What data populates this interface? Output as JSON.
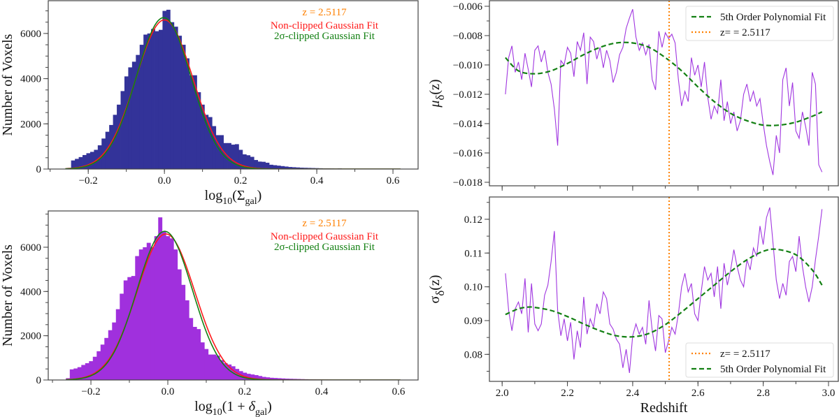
{
  "colors": {
    "hist_sigma": "#333399",
    "hist_delta": "#a030dd",
    "series_line": "#a036e0",
    "nonclipped_fit": "#ff1a1a",
    "clipped_fit": "#138013",
    "poly_fit": "#138013",
    "redshift_marker": "#ff8000"
  },
  "chart_data": [
    {
      "type": "bar",
      "panel": "top-left",
      "xlabel_parts": [
        [
          "log",
          ""
        ],
        [
          "10",
          "sub"
        ],
        [
          "(Σ",
          ""
        ],
        [
          "gal",
          "sub"
        ],
        [
          ")",
          ""
        ]
      ],
      "ylabel": "Number of Voxels",
      "xlim": [
        -0.305,
        0.666
      ],
      "ylim": [
        0,
        7450
      ],
      "xticks": [
        -0.2,
        0.0,
        0.2,
        0.4,
        0.6
      ],
      "xtick_labels": [
        "−0.2",
        "0.0",
        "0.2",
        "0.4",
        "0.6"
      ],
      "x_minor_step": 0.1,
      "yticks": [
        0,
        2000,
        4000,
        6000
      ],
      "ytick_labels": [
        "0",
        "2000",
        "4000",
        "6000"
      ],
      "y_minor_step": 500,
      "bin_start": -0.255,
      "bin_width": 0.01,
      "values": [
        50,
        380,
        450,
        530,
        620,
        700,
        760,
        850,
        1050,
        1350,
        1650,
        1950,
        2400,
        2850,
        3450,
        4100,
        4500,
        4750,
        5050,
        5500,
        5950,
        6000,
        6200,
        6100,
        6160,
        7000,
        7050,
        6500,
        6300,
        5900,
        5500,
        4900,
        4150,
        4150,
        3400,
        2850,
        2400,
        2300,
        1900,
        1500,
        1500,
        1150,
        1150,
        1080,
        1100,
        850,
        650,
        610,
        540,
        400,
        330,
        320,
        280,
        190,
        170,
        150,
        130,
        110,
        90,
        80,
        70,
        60,
        55,
        50,
        45,
        40,
        35,
        30,
        30,
        25,
        20,
        30,
        15,
        10,
        10,
        8,
        8,
        6,
        6,
        5,
        5,
        4,
        4,
        3,
        3,
        2,
        2
      ],
      "fits": [
        {
          "name": "Non-clipped Gaussian Fit",
          "amplitude": 6600,
          "mean": 0.0,
          "sigma": 0.075,
          "range": [
            -0.26,
            0.62
          ]
        },
        {
          "name": "2σ-clipped Gaussian Fit",
          "amplitude": 6700,
          "mean": -0.002,
          "sigma": 0.072,
          "range": [
            -0.26,
            0.62
          ]
        }
      ],
      "annotations": [
        "z = 2.5117",
        "Non-clipped Gaussian Fit",
        "2σ-clipped Gaussian Fit"
      ]
    },
    {
      "type": "bar",
      "panel": "bottom-left",
      "xlabel_parts": [
        [
          "log",
          ""
        ],
        [
          "10",
          "sub"
        ],
        [
          "(1 + ",
          ""
        ],
        [
          "δ",
          "ital"
        ],
        [
          "gal",
          "sub"
        ],
        [
          ")",
          ""
        ]
      ],
      "ylabel": "Number of Voxels",
      "xlim": [
        -0.311,
        0.651
      ],
      "ylim": [
        0,
        7640
      ],
      "xticks": [
        -0.2,
        0.0,
        0.2,
        0.4,
        0.6
      ],
      "xtick_labels": [
        "−0.2",
        "0.0",
        "0.2",
        "0.4",
        "0.6"
      ],
      "x_minor_step": 0.1,
      "yticks": [
        0,
        2000,
        4000,
        6000
      ],
      "ytick_labels": [
        "0",
        "2000",
        "4000",
        "6000"
      ],
      "y_minor_step": 500,
      "bin_start": -0.265,
      "bin_width": 0.01,
      "values": [
        80,
        480,
        520,
        580,
        680,
        760,
        850,
        1050,
        1300,
        1600,
        1900,
        2250,
        2600,
        3200,
        3900,
        4500,
        4650,
        4700,
        5600,
        5900,
        6000,
        6200,
        6000,
        6500,
        7350,
        6700,
        6500,
        6400,
        5900,
        5000,
        4300,
        3600,
        2800,
        2400,
        2300,
        1700,
        1400,
        1150,
        1150,
        1100,
        900,
        760,
        700,
        620,
        500,
        400,
        330,
        280,
        250,
        220,
        180,
        140,
        120,
        100,
        90,
        80,
        70,
        60,
        55,
        50,
        45,
        40,
        35,
        30,
        28,
        25,
        22,
        20,
        18,
        15,
        12,
        10,
        8,
        8,
        6,
        6,
        5,
        5,
        4,
        4,
        3,
        3,
        2,
        2
      ],
      "fits": [
        {
          "name": "Non-clipped Gaussian Fit",
          "amplitude": 6600,
          "mean": -0.005,
          "sigma": 0.075,
          "range": [
            -0.265,
            0.605
          ]
        },
        {
          "name": "2σ-clipped Gaussian Fit",
          "amplitude": 6720,
          "mean": -0.008,
          "sigma": 0.072,
          "range": [
            -0.265,
            0.605
          ]
        }
      ],
      "annotations": [
        "z = 2.5117",
        "Non-clipped Gaussian Fit",
        "2σ-clipped Gaussian Fit"
      ]
    },
    {
      "type": "line",
      "panel": "top-right",
      "xlabel": "",
      "ylabel_parts": [
        [
          "μ",
          "ital"
        ],
        [
          "δ",
          "sub"
        ],
        [
          "(z)",
          ""
        ]
      ],
      "xlim": [
        1.961,
        3.03
      ],
      "ylim": [
        -0.01824,
        -0.00562
      ],
      "xticks": [
        2.0,
        2.2,
        2.4,
        2.6,
        2.8,
        3.0
      ],
      "xtick_labels": [],
      "x_minor_step": 0.1,
      "yticks": [
        -0.018,
        -0.016,
        -0.014,
        -0.012,
        -0.01,
        -0.008,
        -0.006
      ],
      "ytick_labels": [
        "−0.018",
        "−0.016",
        "−0.014",
        "−0.012",
        "−0.010",
        "−0.008",
        "−0.006"
      ],
      "y_minor_step": 0.001,
      "x_start": 2.01,
      "x_step": 0.01,
      "values": [
        -0.012,
        -0.0095,
        -0.0087,
        -0.0105,
        -0.0098,
        -0.011,
        -0.0092,
        -0.0103,
        -0.0115,
        -0.009,
        -0.0087,
        -0.0098,
        -0.009,
        -0.0105,
        -0.0113,
        -0.013,
        -0.0155,
        -0.0097,
        -0.01,
        -0.0088,
        -0.0092,
        -0.0108,
        -0.0084,
        -0.009,
        -0.0078,
        -0.0113,
        -0.0081,
        -0.0084,
        -0.0096,
        -0.0088,
        -0.0102,
        -0.009,
        -0.0097,
        -0.0112,
        -0.0105,
        -0.0093,
        -0.0088,
        -0.0075,
        -0.0068,
        -0.0062,
        -0.0081,
        -0.009,
        -0.0085,
        -0.0093,
        -0.0086,
        -0.011,
        -0.0117,
        -0.0077,
        -0.0088,
        -0.0078,
        -0.0082,
        -0.0079,
        -0.0085,
        -0.011,
        -0.0128,
        -0.0118,
        -0.0125,
        -0.0095,
        -0.0107,
        -0.01,
        -0.0115,
        -0.0098,
        -0.0122,
        -0.0137,
        -0.0128,
        -0.0133,
        -0.011,
        -0.0138,
        -0.0125,
        -0.014,
        -0.0132,
        -0.0145,
        -0.0138,
        -0.012,
        -0.0113,
        -0.0125,
        -0.0118,
        -0.0128,
        -0.0123,
        -0.014,
        -0.0155,
        -0.0166,
        -0.0175,
        -0.0148,
        -0.016,
        -0.011,
        -0.0102,
        -0.0128,
        -0.0112,
        -0.0145,
        -0.015,
        -0.0132,
        -0.0142,
        -0.0155,
        -0.0105,
        -0.0113,
        -0.0168,
        -0.0173
      ],
      "fit": {
        "name": "5th Order Polynomial Fit",
        "x": [
          2.01,
          2.05,
          2.1,
          2.15,
          2.2,
          2.25,
          2.3,
          2.35,
          2.4,
          2.45,
          2.5,
          2.55,
          2.6,
          2.65,
          2.7,
          2.75,
          2.8,
          2.85,
          2.9,
          2.95,
          2.98
        ],
        "y": [
          -0.0095,
          -0.0104,
          -0.0106,
          -0.0104,
          -0.0099,
          -0.0093,
          -0.0088,
          -0.0085,
          -0.0085,
          -0.0088,
          -0.0095,
          -0.0104,
          -0.0115,
          -0.0125,
          -0.0133,
          -0.0138,
          -0.0141,
          -0.0141,
          -0.0139,
          -0.0135,
          -0.0132
        ]
      },
      "vline": {
        "x": 2.5117,
        "label": "z= = 2.5117"
      },
      "legend": {
        "placement": "top-right",
        "entries": [
          "5th Order Polynomial Fit",
          "z= = 2.5117"
        ]
      }
    },
    {
      "type": "line",
      "panel": "bottom-right",
      "xlabel": "Redshift",
      "ylabel_parts": [
        [
          "σ",
          ""
        ],
        [
          "δ",
          "sub"
        ],
        [
          "(z)",
          ""
        ]
      ],
      "xlim": [
        1.961,
        3.03
      ],
      "ylim": [
        0.072,
        0.1266
      ],
      "xticks": [
        2.0,
        2.2,
        2.4,
        2.6,
        2.8,
        3.0
      ],
      "xtick_labels": [
        "2.0",
        "2.2",
        "2.4",
        "2.6",
        "2.8",
        "3.0"
      ],
      "x_minor_step": 0.1,
      "yticks": [
        0.08,
        0.09,
        0.1,
        0.11,
        0.12
      ],
      "ytick_labels": [
        "0.08",
        "0.09",
        "0.10",
        "0.11",
        "0.12"
      ],
      "y_minor_step": 0.005,
      "x_start": 2.01,
      "x_step": 0.01,
      "values": [
        0.104,
        0.093,
        0.087,
        0.0935,
        0.0955,
        0.092,
        0.1025,
        0.0865,
        0.101,
        0.089,
        0.087,
        0.089,
        0.0975,
        0.1005,
        0.1075,
        0.1165,
        0.093,
        0.0855,
        0.0905,
        0.084,
        0.0895,
        0.0785,
        0.087,
        0.082,
        0.097,
        0.086,
        0.0905,
        0.088,
        0.095,
        0.092,
        0.0985,
        0.0965,
        0.089,
        0.0875,
        0.0845,
        0.083,
        0.076,
        0.0815,
        0.0745,
        0.0855,
        0.089,
        0.086,
        0.088,
        0.083,
        0.096,
        0.087,
        0.081,
        0.0915,
        0.0905,
        0.0805,
        0.084,
        0.088,
        0.086,
        0.092,
        0.1,
        0.104,
        0.0985,
        0.101,
        0.092,
        0.09,
        0.0985,
        0.106,
        0.102,
        0.104,
        0.097,
        0.106,
        0.0935,
        0.107,
        0.1005,
        0.105,
        0.111,
        0.106,
        0.102,
        0.1,
        0.108,
        0.105,
        0.1115,
        0.109,
        0.118,
        0.1125,
        0.1205,
        0.1235,
        0.113,
        0.102,
        0.0965,
        0.101,
        0.0975,
        0.1075,
        0.109,
        0.1045,
        0.115,
        0.106,
        0.1,
        0.0955,
        0.1,
        0.108,
        0.115,
        0.123
      ],
      "fit": {
        "name": "5th Order Polynomial Fit",
        "x": [
          2.01,
          2.05,
          2.08,
          2.1,
          2.15,
          2.2,
          2.25,
          2.3,
          2.35,
          2.4,
          2.45,
          2.5,
          2.55,
          2.6,
          2.65,
          2.7,
          2.75,
          2.8,
          2.84,
          2.9,
          2.95,
          2.98
        ],
        "y": [
          0.0918,
          0.0935,
          0.094,
          0.0939,
          0.093,
          0.0912,
          0.089,
          0.087,
          0.0855,
          0.0852,
          0.0862,
          0.0888,
          0.0925,
          0.0965,
          0.1005,
          0.1045,
          0.108,
          0.1105,
          0.1111,
          0.1095,
          0.105,
          0.1005
        ]
      },
      "vline": {
        "x": 2.5117,
        "label": "z= = 2.5117"
      },
      "legend": {
        "placement": "bottom-right",
        "entries": [
          "z= = 2.5117",
          "5th Order Polynomial Fit"
        ]
      }
    }
  ]
}
